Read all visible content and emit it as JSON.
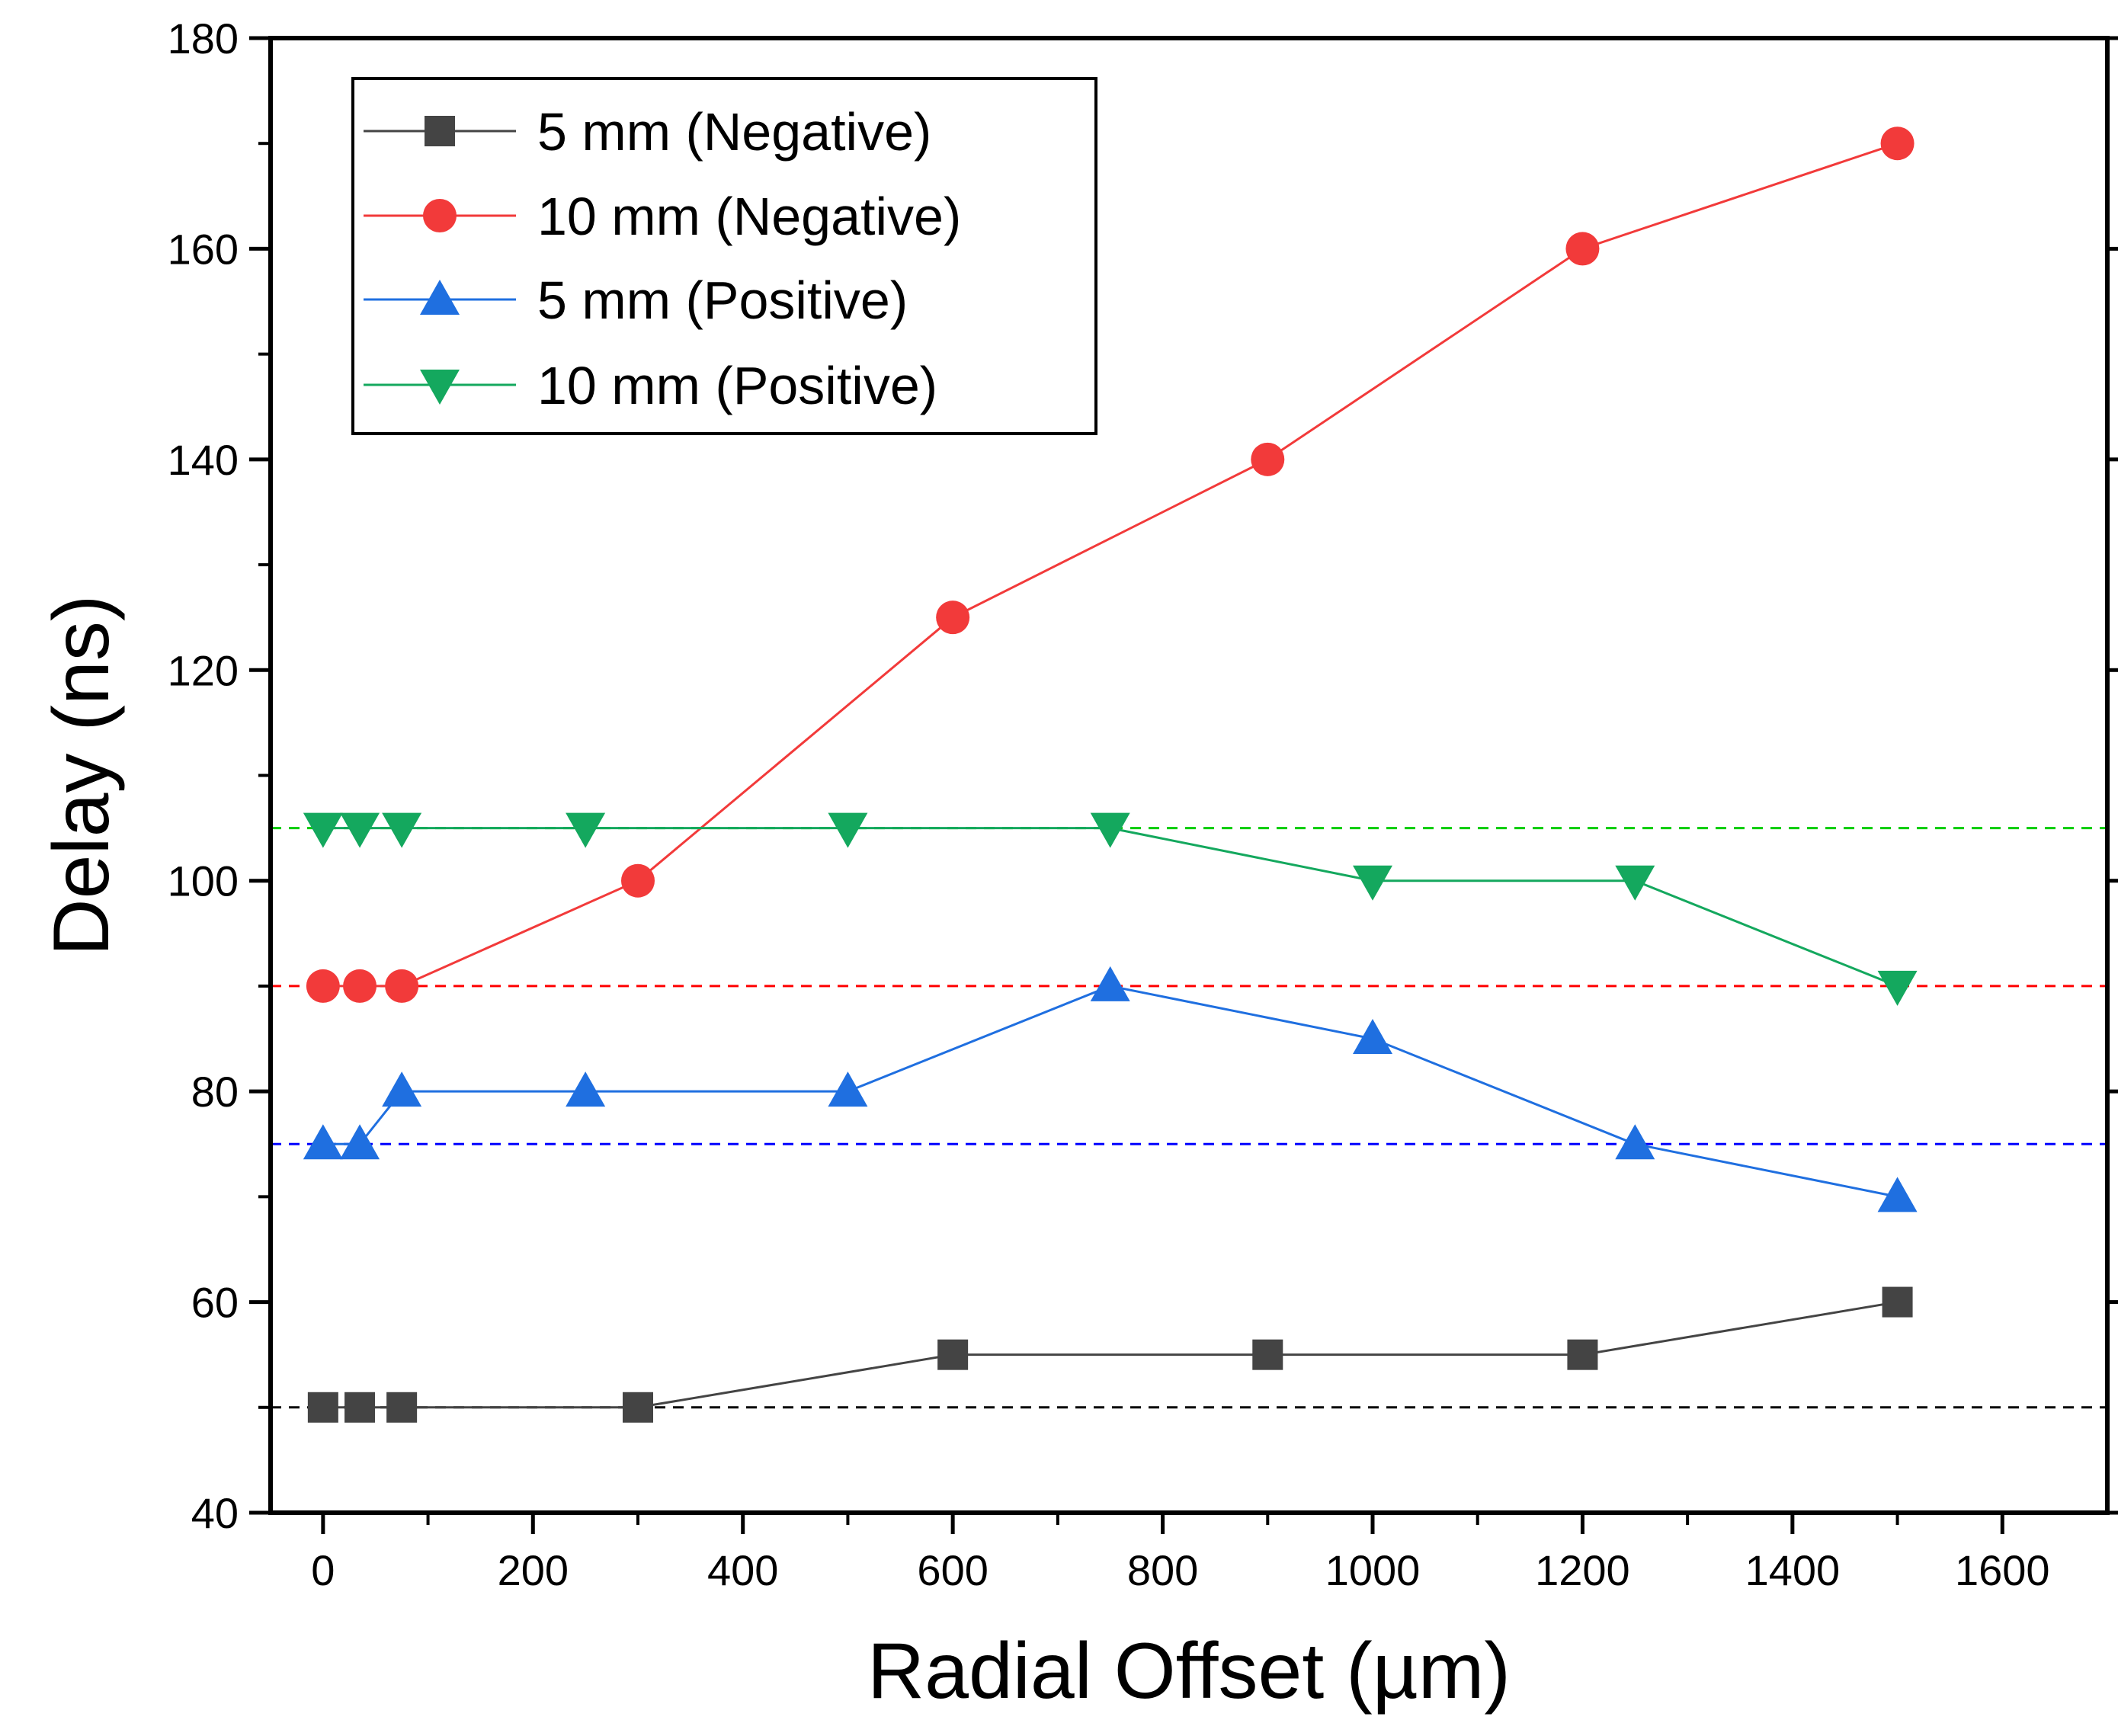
{
  "chart_data": {
    "type": "line",
    "title": "",
    "xlabel": "Radial Offset (µm)",
    "ylabel": "Delay (ns)",
    "xlim": [
      -50,
      1700
    ],
    "ylim": [
      40,
      180
    ],
    "xticks": [
      0,
      200,
      400,
      600,
      800,
      1000,
      1200,
      1400,
      1600
    ],
    "yticks": [
      40,
      60,
      80,
      100,
      120,
      140,
      160,
      180
    ],
    "grid": false,
    "legend_position": "top-left",
    "series": [
      {
        "name": "5 mm (Negative)",
        "marker": "square",
        "color": "#444444",
        "x": [
          0,
          35,
          75,
          300,
          600,
          900,
          1200,
          1500
        ],
        "y": [
          50,
          50,
          50,
          50,
          55,
          55,
          55,
          60
        ]
      },
      {
        "name": "10 mm (Negative)",
        "marker": "circle",
        "color": "#f23a3a",
        "x": [
          0,
          35,
          75,
          300,
          600,
          900,
          1200,
          1500
        ],
        "y": [
          90,
          90,
          90,
          100,
          125,
          140,
          160,
          170
        ]
      },
      {
        "name": "5 mm (Positive)",
        "marker": "triangle-up",
        "color": "#1f6fe0",
        "x": [
          0,
          35,
          75,
          250,
          500,
          750,
          1000,
          1250,
          1500
        ],
        "y": [
          75,
          75,
          80,
          80,
          80,
          90,
          85,
          75,
          70
        ]
      },
      {
        "name": "10 mm (Positive)",
        "marker": "triangle-down",
        "color": "#14a85e",
        "x": [
          0,
          35,
          75,
          250,
          500,
          750,
          1000,
          1250,
          1500
        ],
        "y": [
          105,
          105,
          105,
          105,
          105,
          105,
          100,
          100,
          90
        ]
      }
    ],
    "reference_lines": [
      {
        "y": 50,
        "color": "#000000"
      },
      {
        "y": 90,
        "color": "#ff0000"
      },
      {
        "y": 75,
        "color": "#0000ff"
      },
      {
        "y": 105,
        "color": "#00cc00"
      }
    ]
  }
}
